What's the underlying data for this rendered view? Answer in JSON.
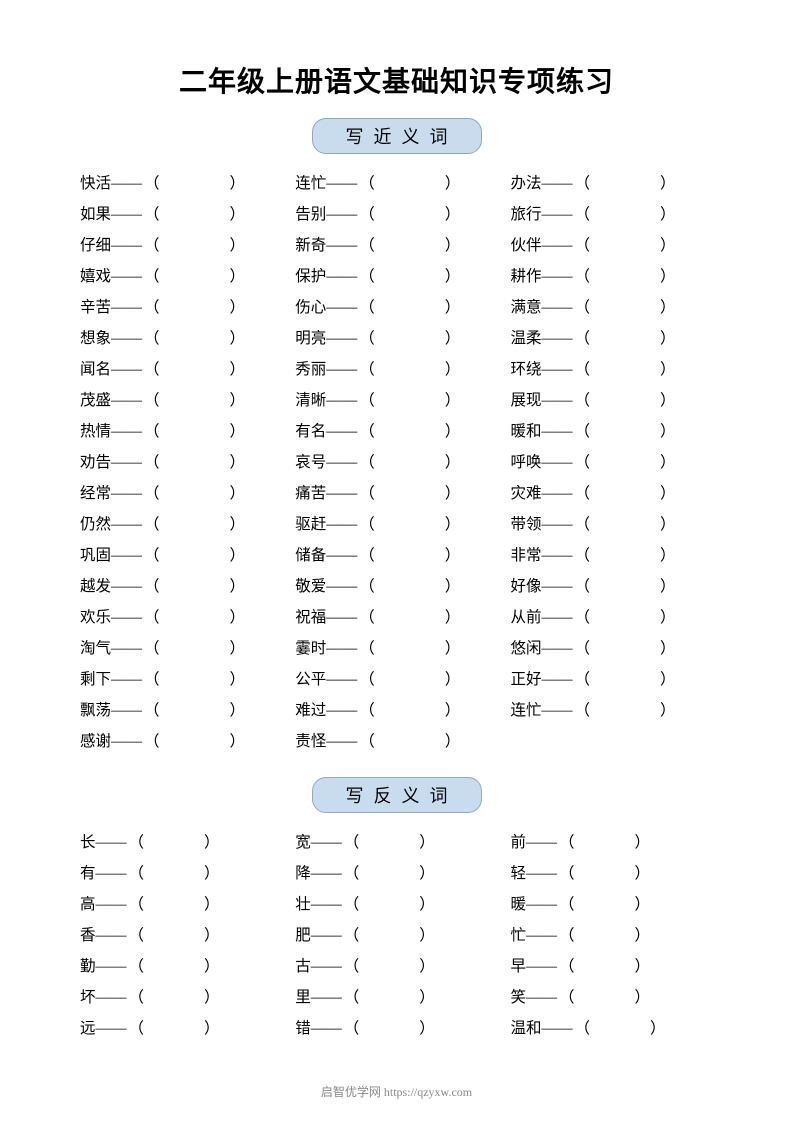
{
  "title": "二年级上册语文基础知识专项练习",
  "section1": {
    "label": "写近义词",
    "col1": [
      "快活",
      "如果",
      "仔细",
      "嬉戏",
      "辛苦",
      "想象",
      "闻名",
      "茂盛",
      "热情",
      "劝告",
      "经常",
      "仍然",
      "巩固",
      "越发",
      "欢乐",
      "淘气",
      "剩下",
      "飘荡",
      "感谢"
    ],
    "col2": [
      "连忙",
      "告别",
      "新奇",
      "保护",
      "伤心",
      "明亮",
      "秀丽",
      "清晰",
      "有名",
      "哀号",
      "痛苦",
      "驱赶",
      "储备",
      "敬爱",
      "祝福",
      "霎时",
      "公平",
      "难过",
      "责怪"
    ],
    "col3": [
      "办法",
      "旅行",
      "伙伴",
      "耕作",
      "满意",
      "温柔",
      "环绕",
      "展现",
      "暖和",
      "呼唤",
      "灾难",
      "带领",
      "非常",
      "好像",
      "从前",
      "悠闲",
      "正好",
      "连忙"
    ]
  },
  "section2": {
    "label": "写反义词",
    "col1": [
      "长",
      "有",
      "高",
      "香",
      "勤",
      "坏",
      "远"
    ],
    "col2": [
      "宽",
      "降",
      "壮",
      "肥",
      "古",
      "里",
      "错"
    ],
    "col3": [
      "前",
      "轻",
      "暖",
      "忙",
      "早",
      "笑",
      "温和"
    ]
  },
  "footer_text": "启智优学网 https://qzyxw.com",
  "colors": {
    "background": "#ffffff",
    "text": "#000000",
    "badge_bg": "#c9dced",
    "badge_border": "#8faabf",
    "footer_text": "#888888"
  },
  "typography": {
    "title_fontsize": 28,
    "badge_fontsize": 18,
    "body_fontsize": 15.5,
    "footer_fontsize": 12
  }
}
